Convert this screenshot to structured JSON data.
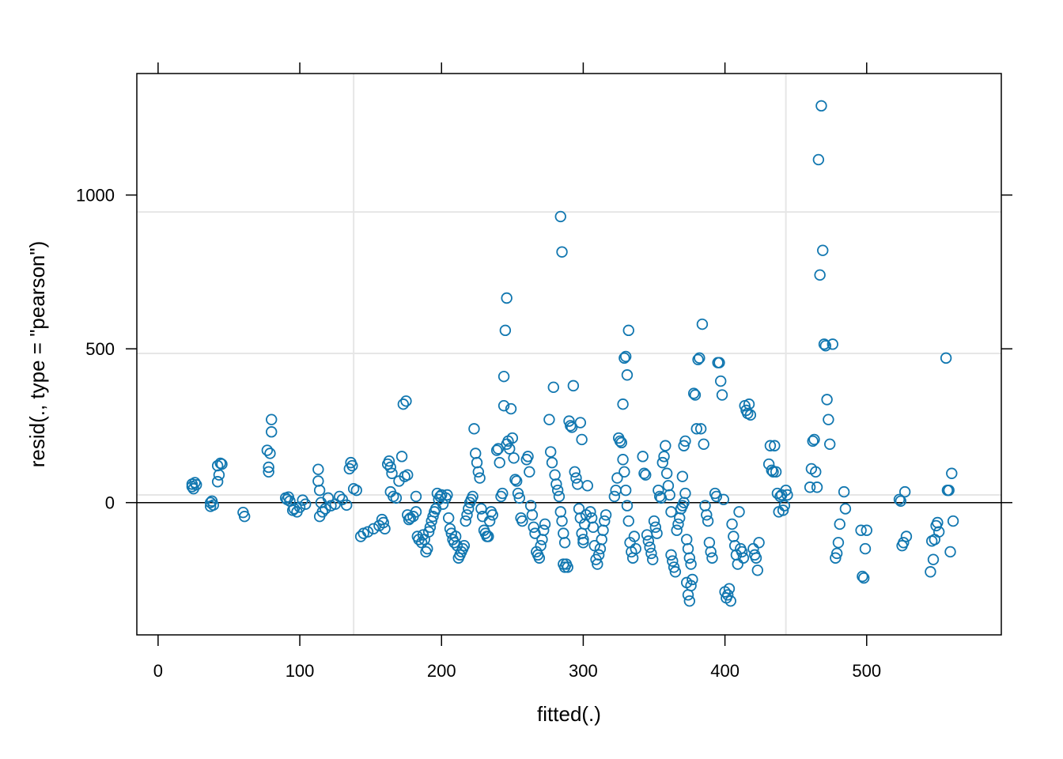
{
  "chart_data": {
    "type": "scatter",
    "title": "",
    "xlabel": "fitted(.)",
    "ylabel": "resid(., type = \"pearson\")",
    "xlim": [
      -15,
      595
    ],
    "ylim": [
      -430,
      1395
    ],
    "x_ticks": [
      0,
      100,
      200,
      300,
      400,
      500
    ],
    "x_tick_labels": [
      "0",
      "100",
      "200",
      "300",
      "400",
      "500"
    ],
    "y_ticks": [
      0,
      500,
      1000
    ],
    "y_tick_labels": [
      "0",
      "500",
      "1000"
    ],
    "grid_x": [
      138,
      443
    ],
    "grid_y": [
      25,
      485,
      945
    ],
    "reference_line_y": 0,
    "marker": "open-circle",
    "colors": {
      "points": "#1177B0",
      "grid": "#E6E6E6",
      "axis": "#000000"
    },
    "points": [
      [
        24,
        60
      ],
      [
        24,
        52
      ],
      [
        25,
        45
      ],
      [
        26,
        65
      ],
      [
        27,
        58
      ],
      [
        37,
        0
      ],
      [
        37,
        -12
      ],
      [
        38,
        5
      ],
      [
        39,
        -8
      ],
      [
        42,
        68
      ],
      [
        42,
        120
      ],
      [
        43,
        90
      ],
      [
        44,
        128
      ],
      [
        45,
        125
      ],
      [
        60,
        -32
      ],
      [
        61,
        -45
      ],
      [
        77,
        170
      ],
      [
        78,
        115
      ],
      [
        78,
        100
      ],
      [
        79,
        160
      ],
      [
        80,
        270
      ],
      [
        80,
        230
      ],
      [
        90,
        15
      ],
      [
        91,
        10
      ],
      [
        92,
        18
      ],
      [
        93,
        5
      ],
      [
        95,
        -25
      ],
      [
        96,
        -20
      ],
      [
        98,
        -30
      ],
      [
        100,
        -15
      ],
      [
        102,
        8
      ],
      [
        104,
        -5
      ],
      [
        113,
        108
      ],
      [
        113,
        70
      ],
      [
        114,
        40
      ],
      [
        115,
        0
      ],
      [
        114,
        -45
      ],
      [
        116,
        -30
      ],
      [
        118,
        -20
      ],
      [
        120,
        15
      ],
      [
        122,
        -10
      ],
      [
        125,
        -5
      ],
      [
        128,
        20
      ],
      [
        130,
        10
      ],
      [
        133,
        -8
      ],
      [
        135,
        110
      ],
      [
        136,
        130
      ],
      [
        137,
        120
      ],
      [
        138,
        45
      ],
      [
        140,
        40
      ],
      [
        143,
        -110
      ],
      [
        145,
        -100
      ],
      [
        148,
        -95
      ],
      [
        152,
        -85
      ],
      [
        156,
        -75
      ],
      [
        158,
        -55
      ],
      [
        159,
        -65
      ],
      [
        160,
        -85
      ],
      [
        162,
        125
      ],
      [
        163,
        135
      ],
      [
        164,
        115
      ],
      [
        165,
        95
      ],
      [
        164,
        35
      ],
      [
        166,
        20
      ],
      [
        168,
        15
      ],
      [
        170,
        70
      ],
      [
        172,
        150
      ],
      [
        173,
        320
      ],
      [
        175,
        330
      ],
      [
        174,
        85
      ],
      [
        176,
        90
      ],
      [
        176,
        -40
      ],
      [
        177,
        -55
      ],
      [
        178,
        -50
      ],
      [
        180,
        -45
      ],
      [
        182,
        -30
      ],
      [
        182,
        20
      ],
      [
        183,
        -110
      ],
      [
        184,
        -120
      ],
      [
        186,
        -130
      ],
      [
        187,
        -105
      ],
      [
        188,
        -120
      ],
      [
        189,
        -160
      ],
      [
        190,
        -150
      ],
      [
        191,
        -95
      ],
      [
        192,
        -80
      ],
      [
        193,
        -60
      ],
      [
        194,
        -45
      ],
      [
        195,
        -30
      ],
      [
        196,
        -20
      ],
      [
        197,
        30
      ],
      [
        198,
        10
      ],
      [
        199,
        20
      ],
      [
        200,
        25
      ],
      [
        201,
        -5
      ],
      [
        203,
        15
      ],
      [
        204,
        25
      ],
      [
        205,
        -50
      ],
      [
        206,
        -85
      ],
      [
        207,
        -100
      ],
      [
        208,
        -120
      ],
      [
        209,
        -130
      ],
      [
        210,
        -110
      ],
      [
        211,
        -140
      ],
      [
        212,
        -180
      ],
      [
        213,
        -170
      ],
      [
        214,
        -160
      ],
      [
        215,
        -150
      ],
      [
        216,
        -140
      ],
      [
        217,
        -60
      ],
      [
        218,
        -40
      ],
      [
        219,
        -20
      ],
      [
        220,
        0
      ],
      [
        221,
        10
      ],
      [
        222,
        20
      ],
      [
        223,
        240
      ],
      [
        224,
        160
      ],
      [
        225,
        130
      ],
      [
        226,
        100
      ],
      [
        227,
        80
      ],
      [
        228,
        -20
      ],
      [
        229,
        -45
      ],
      [
        230,
        -90
      ],
      [
        231,
        -100
      ],
      [
        232,
        -110
      ],
      [
        233,
        -110
      ],
      [
        234,
        -60
      ],
      [
        235,
        -30
      ],
      [
        236,
        -40
      ],
      [
        239,
        170
      ],
      [
        240,
        175
      ],
      [
        241,
        130
      ],
      [
        242,
        20
      ],
      [
        243,
        30
      ],
      [
        244,
        315
      ],
      [
        245,
        560
      ],
      [
        246,
        665
      ],
      [
        244,
        410
      ],
      [
        246,
        190
      ],
      [
        247,
        200
      ],
      [
        248,
        175
      ],
      [
        249,
        305
      ],
      [
        250,
        210
      ],
      [
        251,
        145
      ],
      [
        252,
        75
      ],
      [
        253,
        70
      ],
      [
        254,
        30
      ],
      [
        255,
        15
      ],
      [
        256,
        -50
      ],
      [
        257,
        -60
      ],
      [
        260,
        140
      ],
      [
        261,
        150
      ],
      [
        262,
        100
      ],
      [
        263,
        -10
      ],
      [
        264,
        -40
      ],
      [
        265,
        -80
      ],
      [
        266,
        -100
      ],
      [
        267,
        -160
      ],
      [
        268,
        -170
      ],
      [
        269,
        -180
      ],
      [
        270,
        -140
      ],
      [
        271,
        -120
      ],
      [
        272,
        -90
      ],
      [
        273,
        -70
      ],
      [
        276,
        270
      ],
      [
        277,
        165
      ],
      [
        278,
        130
      ],
      [
        279,
        375
      ],
      [
        280,
        90
      ],
      [
        281,
        60
      ],
      [
        282,
        40
      ],
      [
        283,
        20
      ],
      [
        284,
        -30
      ],
      [
        285,
        -60
      ],
      [
        286,
        -100
      ],
      [
        287,
        -130
      ],
      [
        284,
        930
      ],
      [
        285,
        815
      ],
      [
        286,
        -200
      ],
      [
        287,
        -210
      ],
      [
        288,
        -200
      ],
      [
        289,
        -210
      ],
      [
        290,
        265
      ],
      [
        291,
        250
      ],
      [
        292,
        245
      ],
      [
        293,
        380
      ],
      [
        294,
        100
      ],
      [
        295,
        80
      ],
      [
        296,
        60
      ],
      [
        297,
        -20
      ],
      [
        298,
        -50
      ],
      [
        299,
        -100
      ],
      [
        300,
        -120
      ],
      [
        298,
        260
      ],
      [
        299,
        205
      ],
      [
        300,
        -130
      ],
      [
        301,
        -70
      ],
      [
        302,
        -40
      ],
      [
        303,
        55
      ],
      [
        305,
        -30
      ],
      [
        306,
        -50
      ],
      [
        307,
        -80
      ],
      [
        308,
        -140
      ],
      [
        309,
        -185
      ],
      [
        310,
        -200
      ],
      [
        311,
        -170
      ],
      [
        312,
        -150
      ],
      [
        313,
        -120
      ],
      [
        314,
        -90
      ],
      [
        315,
        -60
      ],
      [
        316,
        -40
      ],
      [
        322,
        20
      ],
      [
        323,
        40
      ],
      [
        324,
        80
      ],
      [
        325,
        210
      ],
      [
        326,
        200
      ],
      [
        327,
        195
      ],
      [
        328,
        320
      ],
      [
        329,
        470
      ],
      [
        330,
        475
      ],
      [
        331,
        415
      ],
      [
        332,
        560
      ],
      [
        328,
        140
      ],
      [
        329,
        100
      ],
      [
        330,
        40
      ],
      [
        331,
        -10
      ],
      [
        332,
        -60
      ],
      [
        333,
        -130
      ],
      [
        334,
        -160
      ],
      [
        335,
        -180
      ],
      [
        336,
        -110
      ],
      [
        337,
        -150
      ],
      [
        342,
        150
      ],
      [
        343,
        95
      ],
      [
        344,
        90
      ],
      [
        345,
        -105
      ],
      [
        346,
        -125
      ],
      [
        347,
        -145
      ],
      [
        348,
        -165
      ],
      [
        349,
        -185
      ],
      [
        350,
        -60
      ],
      [
        351,
        -80
      ],
      [
        352,
        -100
      ],
      [
        353,
        40
      ],
      [
        354,
        20
      ],
      [
        355,
        15
      ],
      [
        356,
        130
      ],
      [
        357,
        150
      ],
      [
        358,
        185
      ],
      [
        359,
        95
      ],
      [
        360,
        55
      ],
      [
        361,
        25
      ],
      [
        362,
        -30
      ],
      [
        362,
        -170
      ],
      [
        363,
        -190
      ],
      [
        364,
        -210
      ],
      [
        365,
        -225
      ],
      [
        366,
        -90
      ],
      [
        367,
        -70
      ],
      [
        368,
        -50
      ],
      [
        369,
        -20
      ],
      [
        370,
        -10
      ],
      [
        371,
        0
      ],
      [
        372,
        30
      ],
      [
        373,
        -260
      ],
      [
        374,
        -300
      ],
      [
        375,
        -320
      ],
      [
        376,
        -270
      ],
      [
        377,
        -250
      ],
      [
        370,
        85
      ],
      [
        371,
        185
      ],
      [
        372,
        200
      ],
      [
        373,
        -120
      ],
      [
        374,
        -150
      ],
      [
        375,
        -180
      ],
      [
        376,
        -200
      ],
      [
        378,
        355
      ],
      [
        379,
        350
      ],
      [
        380,
        240
      ],
      [
        381,
        465
      ],
      [
        382,
        470
      ],
      [
        383,
        240
      ],
      [
        384,
        580
      ],
      [
        385,
        190
      ],
      [
        386,
        -10
      ],
      [
        387,
        -40
      ],
      [
        388,
        -60
      ],
      [
        389,
        -130
      ],
      [
        390,
        -160
      ],
      [
        391,
        -180
      ],
      [
        393,
        30
      ],
      [
        394,
        20
      ],
      [
        395,
        455
      ],
      [
        396,
        455
      ],
      [
        397,
        395
      ],
      [
        398,
        350
      ],
      [
        399,
        10
      ],
      [
        400,
        -290
      ],
      [
        401,
        -310
      ],
      [
        402,
        -300
      ],
      [
        403,
        -280
      ],
      [
        404,
        -320
      ],
      [
        405,
        -70
      ],
      [
        406,
        -110
      ],
      [
        407,
        -140
      ],
      [
        408,
        -170
      ],
      [
        409,
        -200
      ],
      [
        410,
        -30
      ],
      [
        411,
        -150
      ],
      [
        412,
        -160
      ],
      [
        413,
        -180
      ],
      [
        414,
        315
      ],
      [
        415,
        300
      ],
      [
        416,
        290
      ],
      [
        417,
        320
      ],
      [
        418,
        285
      ],
      [
        420,
        -150
      ],
      [
        421,
        -170
      ],
      [
        422,
        -180
      ],
      [
        423,
        -220
      ],
      [
        424,
        -130
      ],
      [
        431,
        125
      ],
      [
        432,
        185
      ],
      [
        433,
        105
      ],
      [
        434,
        100
      ],
      [
        435,
        185
      ],
      [
        436,
        100
      ],
      [
        437,
        30
      ],
      [
        438,
        -30
      ],
      [
        439,
        20
      ],
      [
        440,
        25
      ],
      [
        441,
        -25
      ],
      [
        442,
        -10
      ],
      [
        443,
        40
      ],
      [
        444,
        25
      ],
      [
        460,
        50
      ],
      [
        461,
        110
      ],
      [
        462,
        200
      ],
      [
        463,
        205
      ],
      [
        464,
        100
      ],
      [
        465,
        50
      ],
      [
        466,
        1115
      ],
      [
        467,
        740
      ],
      [
        468,
        1290
      ],
      [
        469,
        820
      ],
      [
        470,
        515
      ],
      [
        471,
        510
      ],
      [
        472,
        335
      ],
      [
        473,
        270
      ],
      [
        474,
        190
      ],
      [
        476,
        515
      ],
      [
        478,
        -180
      ],
      [
        479,
        -165
      ],
      [
        480,
        -130
      ],
      [
        481,
        -70
      ],
      [
        484,
        35
      ],
      [
        485,
        -20
      ],
      [
        496,
        -90
      ],
      [
        497,
        -240
      ],
      [
        498,
        -245
      ],
      [
        499,
        -150
      ],
      [
        500,
        -90
      ],
      [
        523,
        10
      ],
      [
        524,
        5
      ],
      [
        525,
        -140
      ],
      [
        526,
        -130
      ],
      [
        527,
        35
      ],
      [
        528,
        -110
      ],
      [
        545,
        -225
      ],
      [
        546,
        -125
      ],
      [
        547,
        -185
      ],
      [
        548,
        -120
      ],
      [
        549,
        -75
      ],
      [
        550,
        -65
      ],
      [
        551,
        -95
      ],
      [
        556,
        470
      ],
      [
        557,
        40
      ],
      [
        558,
        40
      ],
      [
        559,
        -160
      ],
      [
        560,
        95
      ],
      [
        561,
        -60
      ]
    ]
  }
}
